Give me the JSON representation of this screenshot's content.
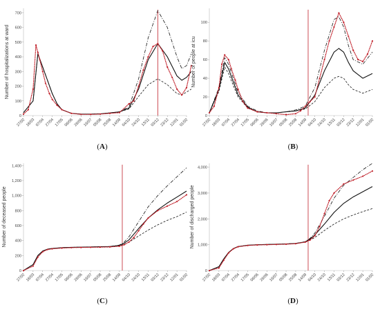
{
  "colors": {
    "observed": "#c0202a",
    "model": "#111111",
    "vline": "#c0202a"
  },
  "panel_labels": [
    "A",
    "B",
    "C",
    "D"
  ],
  "chart_data": [
    {
      "panel": "A",
      "type": "line",
      "ylabel": "Number of hospitalizations at ward",
      "x_ticks": [
        "27/02",
        "18/03",
        "07/04",
        "27/04",
        "17/05",
        "06/06",
        "26/06",
        "16/07",
        "05/08",
        "25/08",
        "14/09",
        "04/10",
        "24/10",
        "13/11",
        "03/12",
        "23/12",
        "12/01",
        "01/02"
      ],
      "y_ticks": [
        "0",
        "100",
        "200",
        "300",
        "400",
        "500",
        "600",
        "700"
      ],
      "ylim": [
        0,
        730
      ],
      "vline_x": 14,
      "series": [
        {
          "style": "dashdot",
          "x": [
            0,
            1,
            1.5,
            2,
            2.5,
            3,
            3.5,
            4,
            5,
            6,
            7,
            8,
            9,
            10,
            11,
            12,
            13,
            14,
            15,
            16,
            16.5,
            17,
            17.5
          ],
          "y": [
            20,
            100,
            420,
            330,
            240,
            150,
            80,
            40,
            15,
            10,
            10,
            12,
            18,
            25,
            60,
            250,
            530,
            715,
            600,
            400,
            320,
            340,
            420
          ]
        },
        {
          "style": "solid",
          "x": [
            0,
            1,
            1.5,
            2,
            2.5,
            3,
            3.5,
            4,
            5,
            6,
            7,
            8,
            9,
            10,
            11,
            12,
            13,
            14,
            15,
            16,
            16.5,
            17,
            17.5
          ],
          "y": [
            20,
            100,
            420,
            330,
            240,
            150,
            80,
            40,
            15,
            10,
            10,
            12,
            18,
            25,
            50,
            180,
            380,
            490,
            400,
            270,
            240,
            260,
            300
          ]
        },
        {
          "style": "dashed",
          "x": [
            0,
            1,
            1.5,
            2,
            2.5,
            3,
            3.5,
            4,
            5,
            6,
            7,
            8,
            9,
            10,
            11,
            12,
            13,
            14,
            15,
            16,
            16.5,
            17,
            17.5
          ],
          "y": [
            20,
            100,
            420,
            330,
            240,
            150,
            80,
            40,
            15,
            10,
            10,
            12,
            18,
            25,
            45,
            130,
            210,
            250,
            210,
            150,
            140,
            160,
            180
          ]
        },
        {
          "style": "observed",
          "x": [
            0,
            0.5,
            1,
            1.3,
            1.5,
            1.7,
            2,
            2.3,
            2.7,
            3,
            3.5,
            4,
            5,
            6,
            7,
            8,
            9,
            10,
            11,
            11.5,
            12,
            12.5,
            13,
            13.5,
            14,
            14.5,
            15,
            15.5,
            16,
            16.5,
            17,
            17.5
          ],
          "y": [
            10,
            40,
            180,
            480,
            430,
            380,
            300,
            220,
            150,
            110,
            70,
            40,
            15,
            8,
            8,
            10,
            15,
            20,
            80,
            100,
            200,
            310,
            400,
            470,
            490,
            440,
            330,
            260,
            180,
            140,
            190,
            340
          ]
        }
      ]
    },
    {
      "panel": "B",
      "type": "line",
      "ylabel": "Number of people at icu",
      "x_ticks": [
        "27/02",
        "18/03",
        "07/04",
        "27/04",
        "17/05",
        "06/06",
        "26/06",
        "16/07",
        "05/08",
        "25/08",
        "14/09",
        "04/10",
        "24/10",
        "13/11",
        "03/12",
        "23/12",
        "12/01",
        "01/02"
      ],
      "y_ticks": [
        "0",
        "20",
        "40",
        "60",
        "80",
        "100"
      ],
      "ylim": [
        0,
        115
      ],
      "vline_x": 10.3,
      "series": [
        {
          "style": "dashdot",
          "x": [
            0,
            1,
            1.6,
            2,
            2.5,
            3,
            4,
            5,
            6,
            7,
            8,
            9,
            10,
            11,
            12,
            13,
            13.5,
            14,
            14.5,
            15,
            16,
            17
          ],
          "y": [
            3,
            30,
            62,
            55,
            40,
            25,
            10,
            5,
            3,
            3,
            4,
            6,
            10,
            30,
            70,
            103,
            106,
            95,
            75,
            60,
            55,
            68
          ]
        },
        {
          "style": "solid",
          "x": [
            0,
            1,
            1.6,
            2,
            2.5,
            3,
            4,
            5,
            6,
            7,
            8,
            9,
            10,
            11,
            12,
            13,
            13.5,
            14,
            14.5,
            15,
            16,
            17
          ],
          "y": [
            3,
            28,
            57,
            50,
            36,
            22,
            9,
            4,
            3,
            3,
            4,
            5,
            8,
            22,
            48,
            68,
            72,
            68,
            57,
            48,
            40,
            45
          ]
        },
        {
          "style": "dashed",
          "x": [
            0,
            1,
            1.6,
            2,
            2.5,
            3,
            4,
            5,
            6,
            7,
            8,
            9,
            10,
            11,
            12,
            13,
            13.5,
            14,
            14.5,
            15,
            16,
            17
          ],
          "y": [
            3,
            26,
            52,
            45,
            32,
            20,
            8,
            4,
            3,
            3,
            4,
            5,
            7,
            15,
            30,
            40,
            42,
            40,
            33,
            28,
            24,
            28
          ]
        },
        {
          "style": "observed",
          "x": [
            0,
            0.5,
            1,
            1.3,
            1.6,
            2,
            2.3,
            2.7,
            3,
            3.5,
            4,
            5,
            6,
            7,
            8,
            9,
            9.5,
            10,
            10.5,
            11,
            11.5,
            12,
            12.5,
            13,
            13.5,
            14,
            14.5,
            15,
            15.5,
            16,
            16.5,
            17
          ],
          "y": [
            3,
            10,
            30,
            55,
            65,
            60,
            50,
            38,
            28,
            15,
            8,
            4,
            3,
            2,
            1,
            2,
            5,
            10,
            15,
            20,
            40,
            60,
            80,
            95,
            110,
            100,
            85,
            70,
            60,
            58,
            66,
            80
          ]
        }
      ]
    },
    {
      "panel": "C",
      "type": "line",
      "ylabel": "Number of deceased people",
      "x_ticks": [
        "27/02",
        "18/03",
        "07/04",
        "27/04",
        "17/05",
        "06/06",
        "26/06",
        "16/07",
        "05/08",
        "25/08",
        "14/09",
        "04/10",
        "24/10",
        "13/11",
        "03/12",
        "23/12",
        "12/01",
        "01/02"
      ],
      "y_ticks": [
        "0",
        "200",
        "400",
        "600",
        "800",
        "1,000",
        "1,200",
        "1,400"
      ],
      "ylim": [
        0,
        1430
      ],
      "vline_x": 10.3,
      "series": [
        {
          "style": "dashdot",
          "x": [
            0,
            1,
            1.5,
            2,
            2.5,
            3,
            4,
            5,
            6,
            7,
            8,
            9,
            10,
            10.5,
            11,
            12,
            13,
            14,
            15,
            16,
            17
          ],
          "y": [
            0,
            80,
            200,
            260,
            285,
            295,
            305,
            310,
            312,
            315,
            318,
            320,
            340,
            380,
            450,
            650,
            850,
            1000,
            1130,
            1250,
            1370
          ]
        },
        {
          "style": "solid",
          "x": [
            0,
            1,
            1.5,
            2,
            2.5,
            3,
            4,
            5,
            6,
            7,
            8,
            9,
            10,
            10.5,
            11,
            12,
            13,
            14,
            15,
            16,
            17
          ],
          "y": [
            0,
            80,
            200,
            260,
            285,
            295,
            305,
            310,
            312,
            315,
            318,
            320,
            335,
            365,
            410,
            560,
            700,
            810,
            900,
            980,
            1060
          ]
        },
        {
          "style": "dashed",
          "x": [
            0,
            1,
            1.5,
            2,
            2.5,
            3,
            4,
            5,
            6,
            7,
            8,
            9,
            10,
            10.5,
            11,
            12,
            13,
            14,
            15,
            16,
            17
          ],
          "y": [
            0,
            80,
            200,
            260,
            285,
            295,
            305,
            310,
            312,
            315,
            318,
            320,
            330,
            350,
            380,
            460,
            540,
            610,
            670,
            720,
            780
          ]
        },
        {
          "style": "observed",
          "x": [
            0,
            1,
            1.5,
            2,
            2.5,
            3,
            4,
            5,
            6,
            7,
            8,
            9,
            10,
            10.5,
            11,
            11.5,
            12,
            12.5,
            13,
            14,
            15,
            16,
            17
          ],
          "y": [
            0,
            60,
            180,
            250,
            280,
            290,
            300,
            305,
            308,
            310,
            312,
            315,
            325,
            345,
            380,
            440,
            530,
            620,
            700,
            800,
            860,
            920,
            1010
          ]
        }
      ]
    },
    {
      "panel": "D",
      "type": "line",
      "ylabel": "Number of discharged people",
      "x_ticks": [
        "27/02",
        "18/03",
        "07/04",
        "27/04",
        "17/05",
        "06/06",
        "26/06",
        "16/07",
        "05/08",
        "25/08",
        "14/09",
        "04/10",
        "24/10",
        "13/11",
        "03/12",
        "23/12",
        "12/01",
        "01/02"
      ],
      "y_ticks": [
        "0",
        "1,000",
        "2,000",
        "3,000",
        "4,000"
      ],
      "ylim": [
        0,
        4150
      ],
      "vline_x": 10.3,
      "series": [
        {
          "style": "dashdot",
          "x": [
            0,
            1,
            1.5,
            2,
            2.5,
            3,
            4,
            5,
            6,
            7,
            8,
            9,
            10,
            10.5,
            11,
            12,
            13,
            14,
            15,
            16,
            17
          ],
          "y": [
            0,
            150,
            450,
            700,
            850,
            930,
            980,
            1000,
            1010,
            1020,
            1030,
            1050,
            1120,
            1250,
            1450,
            2100,
            2800,
            3300,
            3600,
            3900,
            4150
          ]
        },
        {
          "style": "solid",
          "x": [
            0,
            1,
            1.5,
            2,
            2.5,
            3,
            4,
            5,
            6,
            7,
            8,
            9,
            10,
            10.5,
            11,
            12,
            13,
            14,
            15,
            16,
            17
          ],
          "y": [
            0,
            150,
            450,
            700,
            850,
            930,
            980,
            1000,
            1010,
            1020,
            1030,
            1050,
            1110,
            1220,
            1380,
            1800,
            2250,
            2600,
            2850,
            3050,
            3250
          ]
        },
        {
          "style": "dashed",
          "x": [
            0,
            1,
            1.5,
            2,
            2.5,
            3,
            4,
            5,
            6,
            7,
            8,
            9,
            10,
            10.5,
            11,
            12,
            13,
            14,
            15,
            16,
            17
          ],
          "y": [
            0,
            150,
            450,
            700,
            850,
            930,
            980,
            1000,
            1010,
            1020,
            1030,
            1050,
            1100,
            1180,
            1280,
            1550,
            1800,
            2000,
            2150,
            2280,
            2400
          ]
        },
        {
          "style": "observed",
          "x": [
            0,
            1,
            1.5,
            2,
            2.5,
            3,
            4,
            5,
            6,
            7,
            8,
            9,
            10,
            10.5,
            11,
            11.5,
            12,
            12.5,
            13,
            14,
            15,
            16,
            17
          ],
          "y": [
            0,
            100,
            400,
            680,
            840,
            920,
            970,
            990,
            1000,
            1010,
            1020,
            1040,
            1100,
            1180,
            1350,
            1700,
            2200,
            2700,
            3000,
            3350,
            3500,
            3650,
            3850
          ]
        }
      ]
    }
  ]
}
